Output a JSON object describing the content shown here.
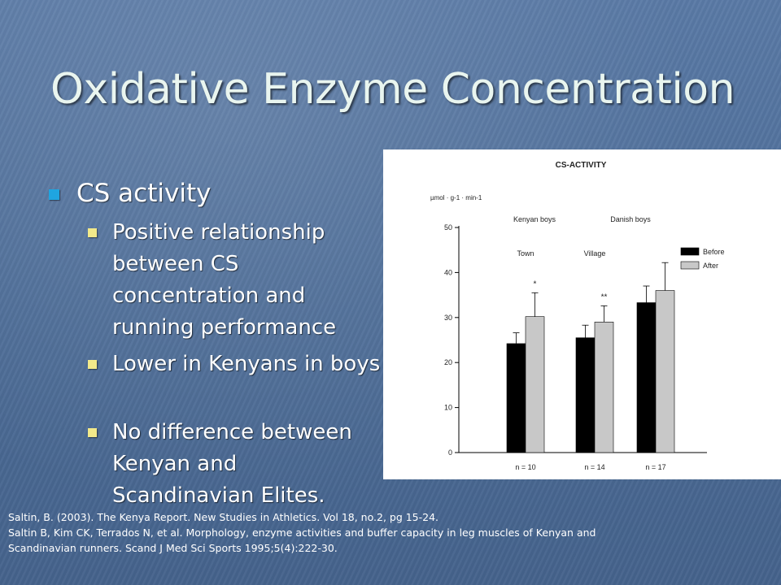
{
  "slide": {
    "title": "Oxidative Enzyme Concentration",
    "bullets": [
      {
        "text": "CS activity",
        "sub_bullets": [
          "Positive relationship between CS concentration and running performance",
          "Lower in Kenyans in boys",
          "No difference between Kenyan and Scandinavian Elites."
        ]
      }
    ],
    "references": [
      "Saltin, B. (2003). The Kenya Report.  New Studies in Athletics. Vol 18, no.2, pg 15-24.",
      "Saltin B, Kim CK, Terrados N, et al.  Morphology, enzyme activities and buffer capacity in leg muscles of Kenyan and",
      "Scandinavian runners.  Scand J Med Sci Sports 1995;5(4):222-30."
    ],
    "colors": {
      "title": "#e9f5ef",
      "bullet_level1": "#1fa5e0",
      "bullet_level2": "#f2e98a",
      "background": "#4f6f9a"
    }
  },
  "chart_data": {
    "type": "bar",
    "title": "CS-ACTIVITY",
    "ylabel": "µmol · g-1 · min-1",
    "ylim": [
      0,
      50
    ],
    "yticks": [
      0,
      10,
      20,
      30,
      40,
      50
    ],
    "group_labels": [
      "Kenyan boys",
      "Danish boys"
    ],
    "categories": [
      "Town",
      "Village",
      ""
    ],
    "n_labels": [
      "n = 10",
      "n = 14",
      "n = 17"
    ],
    "series": [
      {
        "name": "Before",
        "color": "#000000",
        "values": [
          24.2,
          25.5,
          33.3
        ],
        "errors": [
          2.4,
          2.8,
          3.7
        ]
      },
      {
        "name": "After",
        "color": "#c8c8c8",
        "values": [
          30.2,
          29.0,
          36.0
        ],
        "errors": [
          5.3,
          3.6,
          6.2
        ]
      }
    ],
    "significance": [
      "*",
      "**",
      ""
    ],
    "legend": "right",
    "grid": false
  }
}
